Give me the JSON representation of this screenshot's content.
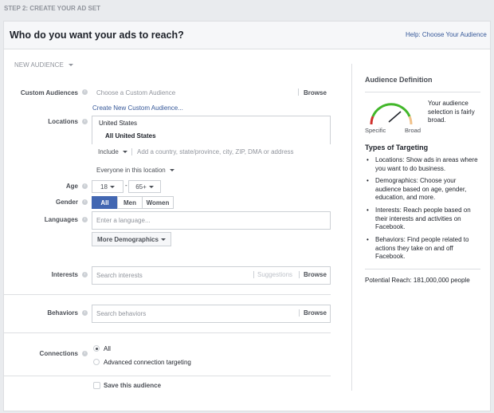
{
  "step": "STEP 2: CREATE YOUR AD SET",
  "header": {
    "title": "Who do you want your ads to reach?",
    "help_link": "Help: Choose Your Audience"
  },
  "audience_selector": "NEW AUDIENCE",
  "custom_audiences": {
    "label": "Custom Audiences",
    "placeholder": "Choose a Custom Audience",
    "browse": "Browse",
    "create_link": "Create New Custom Audience..."
  },
  "locations": {
    "label": "Locations",
    "country": "United States",
    "selected": "All United States",
    "include": "Include",
    "placeholder": "Add a country, state/province, city, ZIP, DMA or address",
    "scope": "Everyone in this location"
  },
  "age": {
    "label": "Age",
    "min": "18",
    "max": "65+",
    "dash": "-"
  },
  "gender": {
    "label": "Gender",
    "options": [
      "All",
      "Men",
      "Women"
    ],
    "selected": "All"
  },
  "languages": {
    "label": "Languages",
    "placeholder": "Enter a language..."
  },
  "more_demographics": "More Demographics",
  "interests": {
    "label": "Interests",
    "placeholder": "Search interests",
    "suggestions": "Suggestions",
    "browse": "Browse"
  },
  "behaviors": {
    "label": "Behaviors",
    "placeholder": "Search behaviors",
    "browse": "Browse"
  },
  "connections": {
    "label": "Connections",
    "options": [
      "All",
      "Advanced connection targeting"
    ],
    "selected": "All"
  },
  "save_audience": {
    "label": "Save this audience",
    "checked": false
  },
  "sidebar": {
    "title": "Audience Definition",
    "gauge_specific": "Specific",
    "gauge_broad": "Broad",
    "gauge_level": 0.7,
    "summary": "Your audience selection is fairly broad.",
    "types_title": "Types of Targeting",
    "types": [
      "Locations: Show ads in areas where you want to do business.",
      "Demographics: Choose your audience based on age, gender, education, and more.",
      "Interests: Reach people based on their interests and activities on Facebook.",
      "Behaviors: Find people related to actions they take on and off Facebook."
    ],
    "potential_reach": "Potential Reach: 181,000,000 people"
  },
  "colors": {
    "accent": "#4267b2",
    "link": "#365899",
    "gauge_green": "#42b72a",
    "gauge_red": "#d0312d",
    "gauge_orange": "#f0c18a"
  }
}
